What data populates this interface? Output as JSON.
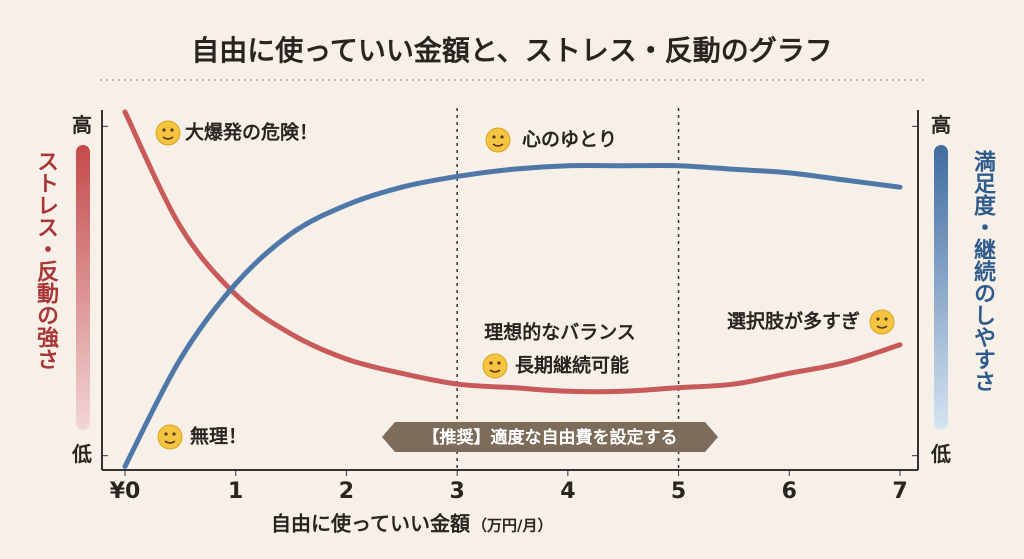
{
  "chart_data": {
    "type": "line",
    "title": "自由に使っていい金額と、ストレス・反動のグラフ",
    "x_label": "自由に使っていい金額",
    "x_label_unit": "（万円/月）",
    "y_label": "ストレス・反動の強さ",
    "y2_label": "満足度・継続のしやすさ",
    "x": [
      0,
      0.5,
      1,
      1.5,
      2,
      2.5,
      3,
      3.5,
      4,
      4.5,
      5,
      5.5,
      6,
      6.5,
      7
    ],
    "xlim": [
      0,
      7
    ],
    "xticks": [
      {
        "value": 0,
        "label": "¥0"
      },
      1,
      2,
      3,
      4,
      5,
      6,
      7
    ],
    "ylim": [
      0,
      100
    ],
    "yticks": [
      {
        "value": 4,
        "label": "低"
      },
      {
        "value": 96,
        "label": "高"
      }
    ],
    "y2lim": [
      0,
      100
    ],
    "y2ticks": [
      {
        "value": 4,
        "label": "低"
      },
      {
        "value": 96,
        "label": "高"
      }
    ],
    "series": [
      {
        "color": "#c85a5a",
        "values": [
          100,
          68,
          49,
          38,
          31,
          27,
          24,
          23,
          22,
          22,
          23,
          24,
          27,
          30,
          35
        ]
      },
      {
        "color": "#4f78a8",
        "axis": "y2",
        "values": [
          1,
          31,
          52,
          66,
          74,
          79,
          82,
          84,
          85,
          85,
          85,
          84,
          83,
          81,
          79
        ]
      }
    ],
    "highlight_range": [
      3,
      5
    ],
    "annotations": [
      "大爆発の危険！",
      "心のゆとり",
      "理想的なバランス",
      "長期継続可能",
      "選択肢が多すぎ",
      "無理！"
    ],
    "banner": "【推奨】適度な自由費を設定する"
  }
}
